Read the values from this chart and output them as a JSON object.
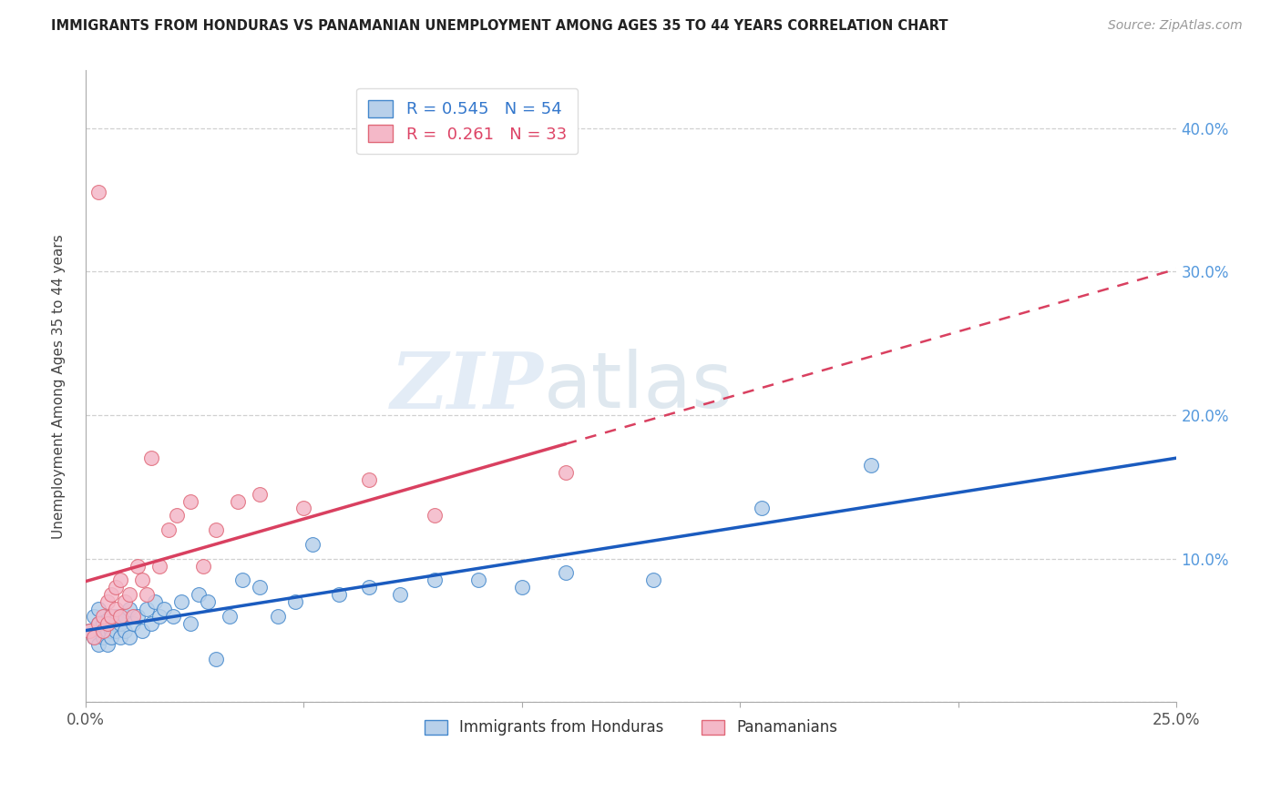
{
  "title": "IMMIGRANTS FROM HONDURAS VS PANAMANIAN UNEMPLOYMENT AMONG AGES 35 TO 44 YEARS CORRELATION CHART",
  "source": "Source: ZipAtlas.com",
  "ylabel": "Unemployment Among Ages 35 to 44 years",
  "xlim": [
    0.0,
    0.25
  ],
  "ylim": [
    0.0,
    0.44
  ],
  "xtick_positions": [
    0.0,
    0.05,
    0.1,
    0.15,
    0.2,
    0.25
  ],
  "xtick_labels": [
    "0.0%",
    "",
    "",
    "",
    "",
    "25.0%"
  ],
  "ytick_positions": [
    0.0,
    0.1,
    0.2,
    0.3,
    0.4
  ],
  "ytick_labels_right": [
    "",
    "10.0%",
    "20.0%",
    "30.0%",
    "40.0%"
  ],
  "legend_r_blue": "0.545",
  "legend_n_blue": "54",
  "legend_r_pink": "0.261",
  "legend_n_pink": "33",
  "legend_label_blue": "Immigrants from Honduras",
  "legend_label_pink": "Panamanians",
  "blue_fill": "#b8d0ea",
  "pink_fill": "#f4b8c8",
  "blue_edge": "#4488cc",
  "pink_edge": "#e06878",
  "blue_line": "#1a5bbf",
  "pink_line": "#d94060",
  "watermark_zip": "ZIP",
  "watermark_atlas": "atlas",
  "bg": "#ffffff",
  "grid_color": "#d0d0d0",
  "blue_x": [
    0.001,
    0.002,
    0.002,
    0.003,
    0.003,
    0.003,
    0.004,
    0.004,
    0.004,
    0.005,
    0.005,
    0.005,
    0.006,
    0.006,
    0.006,
    0.007,
    0.007,
    0.007,
    0.008,
    0.008,
    0.009,
    0.009,
    0.01,
    0.01,
    0.011,
    0.012,
    0.013,
    0.014,
    0.015,
    0.016,
    0.017,
    0.018,
    0.02,
    0.022,
    0.024,
    0.026,
    0.028,
    0.03,
    0.033,
    0.036,
    0.04,
    0.044,
    0.048,
    0.052,
    0.058,
    0.065,
    0.072,
    0.08,
    0.09,
    0.1,
    0.11,
    0.13,
    0.155,
    0.18
  ],
  "blue_y": [
    0.05,
    0.045,
    0.06,
    0.04,
    0.055,
    0.065,
    0.05,
    0.055,
    0.045,
    0.05,
    0.055,
    0.04,
    0.05,
    0.06,
    0.045,
    0.055,
    0.05,
    0.06,
    0.045,
    0.055,
    0.05,
    0.06,
    0.065,
    0.045,
    0.055,
    0.06,
    0.05,
    0.065,
    0.055,
    0.07,
    0.06,
    0.065,
    0.06,
    0.07,
    0.055,
    0.075,
    0.07,
    0.03,
    0.06,
    0.085,
    0.08,
    0.06,
    0.07,
    0.11,
    0.075,
    0.08,
    0.075,
    0.085,
    0.085,
    0.08,
    0.09,
    0.085,
    0.135,
    0.165
  ],
  "pink_x": [
    0.001,
    0.002,
    0.003,
    0.003,
    0.004,
    0.004,
    0.005,
    0.005,
    0.006,
    0.006,
    0.007,
    0.007,
    0.008,
    0.008,
    0.009,
    0.01,
    0.011,
    0.012,
    0.013,
    0.014,
    0.015,
    0.017,
    0.019,
    0.021,
    0.024,
    0.027,
    0.03,
    0.035,
    0.04,
    0.05,
    0.065,
    0.08,
    0.11
  ],
  "pink_y": [
    0.05,
    0.045,
    0.055,
    0.355,
    0.06,
    0.05,
    0.07,
    0.055,
    0.075,
    0.06,
    0.08,
    0.065,
    0.085,
    0.06,
    0.07,
    0.075,
    0.06,
    0.095,
    0.085,
    0.075,
    0.17,
    0.095,
    0.12,
    0.13,
    0.14,
    0.095,
    0.12,
    0.14,
    0.145,
    0.135,
    0.155,
    0.13,
    0.16
  ]
}
